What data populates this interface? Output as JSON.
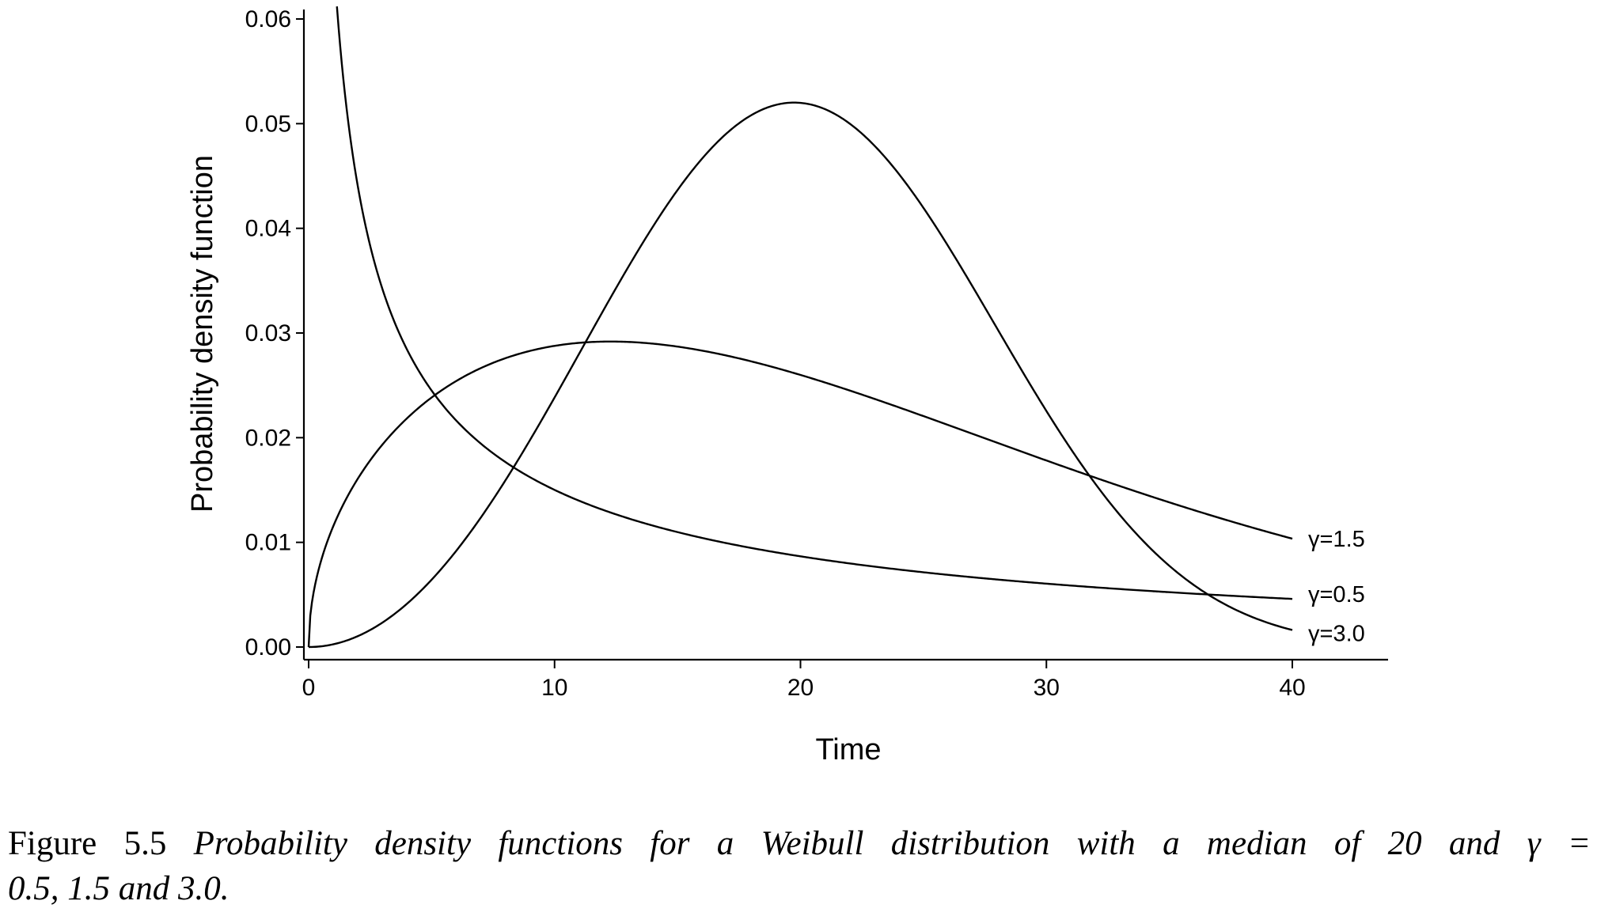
{
  "chart_data": {
    "type": "line",
    "title": "",
    "xlabel": "Time",
    "ylabel": "Probability density function",
    "xlim": [
      0,
      40
    ],
    "ylim": [
      0,
      0.06
    ],
    "x_ticks": [
      "0",
      "10",
      "20",
      "30",
      "40"
    ],
    "y_ticks": [
      "0.00",
      "0.01",
      "0.02",
      "0.03",
      "0.04",
      "0.05",
      "0.06"
    ],
    "median": 20,
    "grid": false,
    "legend": "none",
    "series": [
      {
        "name": "γ=1.5",
        "gamma": 1.5,
        "x_range": [
          0,
          40
        ]
      },
      {
        "name": "γ=0.5",
        "gamma": 0.5,
        "x_range": [
          1.15,
          40
        ]
      },
      {
        "name": "γ=3.0",
        "gamma": 3.0,
        "x_range": [
          0,
          40
        ]
      }
    ],
    "line_color": "#000000"
  },
  "caption": {
    "label": "Figure 5.5",
    "text_line1": "Probability density functions for a Weibull distribution with a median of 20 and γ =",
    "text_line2": "0.5, 1.5 and 3.0."
  }
}
